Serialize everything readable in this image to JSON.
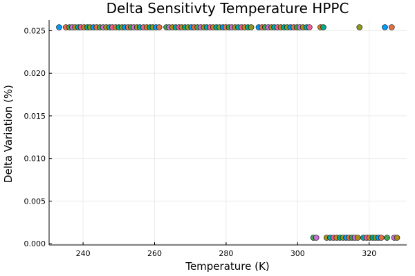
{
  "chart_data": {
    "type": "scatter",
    "title": "Delta Sensitivty Temperature HPPC",
    "xlabel": "Temperature (K)",
    "ylabel": "Delta Variation (%)",
    "xlim": [
      230.5,
      330.5
    ],
    "ylim": [
      -0.00015,
      0.02625
    ],
    "xticks": [
      240,
      260,
      280,
      300,
      320
    ],
    "xtick_labels": [
      "240",
      "260",
      "280",
      "300",
      "320"
    ],
    "yticks": [
      0.0,
      0.005,
      0.01,
      0.015,
      0.02,
      0.025
    ],
    "ytick_labels": [
      "0.000",
      "0.005",
      "0.010",
      "0.015",
      "0.020",
      "0.025"
    ],
    "grid": true,
    "legend": "none",
    "palette": [
      "#009AFA",
      "#E36F47",
      "#3EA44E",
      "#C371D2",
      "#AC8D18",
      "#00A9AD",
      "#ED5E93",
      "#C68225",
      "#00A98D",
      "#8E971E"
    ],
    "series": [
      {
        "y": 0.0254,
        "x": [
          233.3,
          235.2,
          236.2,
          237.0,
          237.8,
          238.7,
          239.4,
          240.3,
          241.2,
          242.0,
          242.9,
          243.8,
          244.7,
          245.6,
          246.5,
          247.4,
          248.2,
          249.1,
          250.0,
          250.9,
          251.7,
          252.6,
          253.4,
          254.2,
          255.1,
          255.9,
          256.9,
          257.8,
          258.7,
          259.5,
          260.4,
          261.3,
          263.3,
          264.1,
          265.0,
          265.9,
          266.8,
          267.6,
          268.5,
          269.4,
          270.3,
          271.1,
          272.0,
          272.9,
          273.8,
          274.6,
          275.5,
          276.4,
          277.3,
          278.2,
          279.1,
          279.9,
          280.8,
          281.6,
          282.5,
          283.4,
          284.3,
          285.2,
          286.1,
          287.0,
          289.1,
          290.0,
          290.9,
          291.8,
          292.7,
          293.5,
          294.4,
          295.3,
          296.2,
          297.1,
          298.0,
          298.9,
          299.8,
          300.6,
          301.5,
          302.5,
          303.3,
          306.4,
          307.2,
          317.3,
          324.4,
          326.3
        ]
      },
      {
        "y": 0.0007,
        "x": [
          304.4,
          305.2,
          308.1,
          309.1,
          310.0,
          310.9,
          311.8,
          312.7,
          313.6,
          314.4,
          315.2,
          316.0,
          316.8,
          318.4,
          319.3,
          320.1,
          321.0,
          321.8,
          322.6,
          323.4,
          325.0,
          327.0,
          327.8
        ]
      }
    ]
  }
}
